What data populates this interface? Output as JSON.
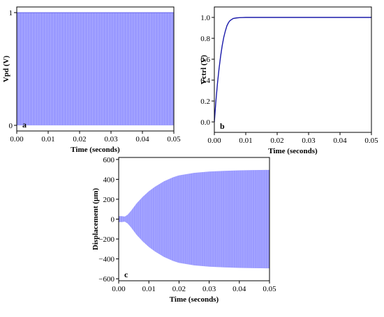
{
  "chart_data": [
    {
      "panel": "a",
      "type": "area",
      "xlabel": "Time (seconds)",
      "ylabel": "Vpd (V)",
      "xlim": [
        0,
        0.05
      ],
      "ylim": [
        -0.05,
        1.05
      ],
      "x_ticks": [
        "0.00",
        "0.01",
        "0.02",
        "0.03",
        "0.04",
        "0.05"
      ],
      "y_ticks": [
        "0",
        "1"
      ],
      "fill_color": "#9999ff",
      "series": [
        {
          "x": [
            0,
            0.05
          ],
          "y_min": [
            0,
            0
          ],
          "y_max": [
            1,
            1
          ]
        }
      ]
    },
    {
      "panel": "b",
      "type": "line",
      "xlabel": "Time (seconds)",
      "ylabel": "Vctrl (V)",
      "xlim": [
        0,
        0.05
      ],
      "ylim": [
        -0.1,
        1.1
      ],
      "x_ticks": [
        "0.00",
        "0.01",
        "0.02",
        "0.03",
        "0.04",
        "0.05"
      ],
      "y_ticks": [
        "0.0",
        "0.2",
        "0.4",
        "0.6",
        "0.8",
        "1.0"
      ],
      "line_color": "#1a1aaa",
      "series": [
        {
          "x": [
            0,
            0.0005,
            0.001,
            0.0015,
            0.002,
            0.0025,
            0.003,
            0.0035,
            0.004,
            0.0045,
            0.005,
            0.006,
            0.007,
            0.008,
            0.009,
            0.01,
            0.02,
            0.03,
            0.04,
            0.05
          ],
          "y": [
            0,
            0.2,
            0.37,
            0.51,
            0.63,
            0.73,
            0.81,
            0.87,
            0.92,
            0.95,
            0.97,
            0.99,
            0.995,
            0.998,
            0.999,
            1.0,
            1.0,
            1.0,
            1.0,
            1.0
          ]
        }
      ]
    },
    {
      "panel": "c",
      "type": "area",
      "xlabel": "Time (seconds)",
      "ylabel": "Displacement (µm)",
      "xlim": [
        0,
        0.05
      ],
      "ylim": [
        -620,
        620
      ],
      "x_ticks": [
        "0.00",
        "0.01",
        "0.02",
        "0.03",
        "0.04",
        "0.05"
      ],
      "y_ticks": [
        "600",
        "400",
        "200",
        "0",
        "−200",
        "−400",
        "−600"
      ],
      "fill_color": "#9999ff",
      "series": [
        {
          "x": [
            0,
            0.001,
            0.002,
            0.003,
            0.004,
            0.005,
            0.006,
            0.008,
            0.01,
            0.012,
            0.015,
            0.018,
            0.02,
            0.025,
            0.03,
            0.035,
            0.04,
            0.045,
            0.05
          ],
          "envelope": [
            30,
            30,
            25,
            45,
            80,
            120,
            160,
            225,
            280,
            325,
            380,
            420,
            440,
            465,
            478,
            485,
            490,
            493,
            495
          ]
        }
      ]
    }
  ]
}
